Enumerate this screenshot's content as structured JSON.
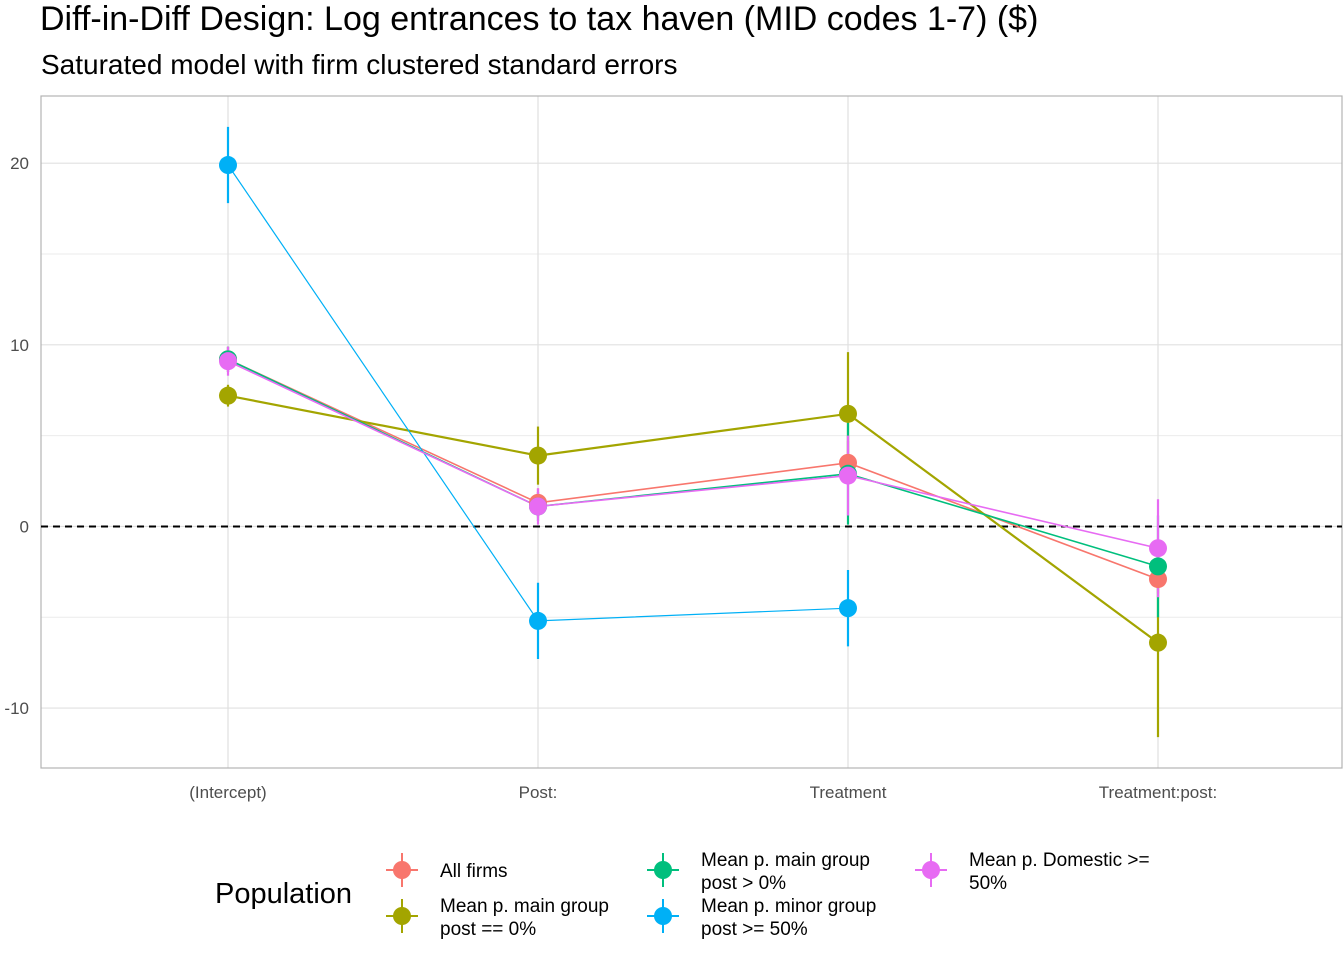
{
  "chart_data": {
    "type": "scatter",
    "title": "Diff-in-Diff Design: Log entrances to tax haven (MID codes 1-7)  ($)",
    "subtitle": "Saturated model with firm clustered standard errors",
    "categories": [
      "(Intercept)",
      "Post:",
      "Treatment",
      "Treatment:post:"
    ],
    "y_ticks": [
      20,
      10,
      0,
      -10
    ],
    "y_tick_labels": [
      "20",
      "10",
      "0",
      "-10"
    ],
    "ylim": [
      -13.3,
      23.7
    ],
    "reference_line": 0,
    "grid": true,
    "legend_title": "Population",
    "legend_position": "bottom",
    "series": [
      {
        "name": "All firms",
        "color": "#F8766D",
        "values": [
          9.2,
          1.3,
          3.5,
          -2.9
        ],
        "ci_low": [
          8.5,
          0.5,
          2.3,
          -3.7
        ],
        "ci_high": [
          9.9,
          2.1,
          4.7,
          -2.1
        ]
      },
      {
        "name": "Mean p. main group\npost == 0%",
        "color": "#A3A500",
        "values": [
          7.2,
          3.9,
          6.2,
          -6.4
        ],
        "ci_low": [
          6.6,
          2.3,
          2.8,
          -11.6
        ],
        "ci_high": [
          7.8,
          5.5,
          9.6,
          -1.2
        ]
      },
      {
        "name": "Mean p. main group\npost > 0%",
        "color": "#00BF7D",
        "values": [
          9.2,
          1.1,
          2.9,
          -2.2
        ],
        "ci_low": [
          8.5,
          0.3,
          0.1,
          -5.0
        ],
        "ci_high": [
          9.9,
          1.9,
          5.7,
          0.6
        ]
      },
      {
        "name": "Mean p. minor group\npost >= 50%",
        "color": "#00B0F6",
        "values": [
          19.9,
          -5.2,
          -4.5,
          null
        ],
        "ci_low": [
          17.8,
          -7.3,
          -6.6,
          null
        ],
        "ci_high": [
          22.0,
          -3.1,
          -2.4,
          null
        ]
      },
      {
        "name": "Mean p. Domestic >=\n50%",
        "color": "#E76BF3",
        "values": [
          9.1,
          1.1,
          2.8,
          -1.2
        ],
        "ci_low": [
          8.3,
          0.1,
          0.6,
          -3.9
        ],
        "ci_high": [
          9.9,
          2.1,
          5.0,
          1.5
        ]
      }
    ]
  }
}
